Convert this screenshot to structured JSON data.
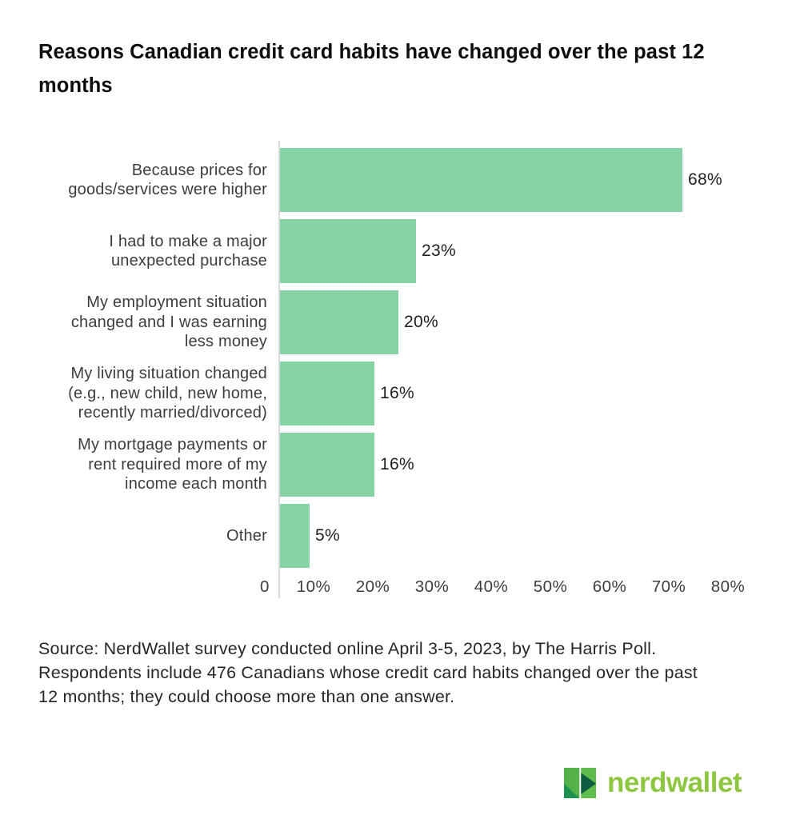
{
  "title": {
    "lines": [
      "Reasons Canadian credit card habits have changed over the past 12",
      "months"
    ]
  },
  "chart_data": {
    "type": "bar",
    "orientation": "horizontal",
    "title": "Reasons Canadian credit card habits have changed over the past 12 months",
    "categories": [
      [
        "Because prices for",
        "goods/services were higher"
      ],
      [
        "I had to make a major",
        "unexpected purchase"
      ],
      [
        "My employment situation",
        "changed and I was earning",
        "less money"
      ],
      [
        "My living situation changed",
        "(e.g., new child, new home,",
        "recently married/divorced)"
      ],
      [
        "My mortgage payments or",
        "rent required more of my",
        "income each month"
      ],
      [
        "Other"
      ]
    ],
    "values": [
      68,
      23,
      20,
      16,
      16,
      5
    ],
    "value_labels": [
      "68%",
      "23%",
      "20%",
      "16%",
      "16%",
      "5%"
    ],
    "xlabel": "",
    "ylabel": "",
    "x_ticks": [
      "0",
      "10%",
      "20%",
      "30%",
      "40%",
      "50%",
      "60%",
      "70%",
      "80%"
    ],
    "xlim": [
      0,
      80
    ],
    "grid": false,
    "legend": false,
    "bar_color": "#86d3a6"
  },
  "source": {
    "lines": [
      "Source: NerdWallet survey conducted online April 3-5, 2023, by The Harris Poll.",
      "Respondents include 476 Canadians whose credit card habits changed over the past",
      "12 months; they could choose more than one answer."
    ]
  },
  "logo": {
    "wordmark": "nerdwallet",
    "wordmark_color": "#8dc63f",
    "mark_colors": {
      "left_bar": "#55b24a",
      "right_bar": "#5fbc4d",
      "fold": "#1d9150",
      "arrow": "#0d5e41"
    }
  }
}
